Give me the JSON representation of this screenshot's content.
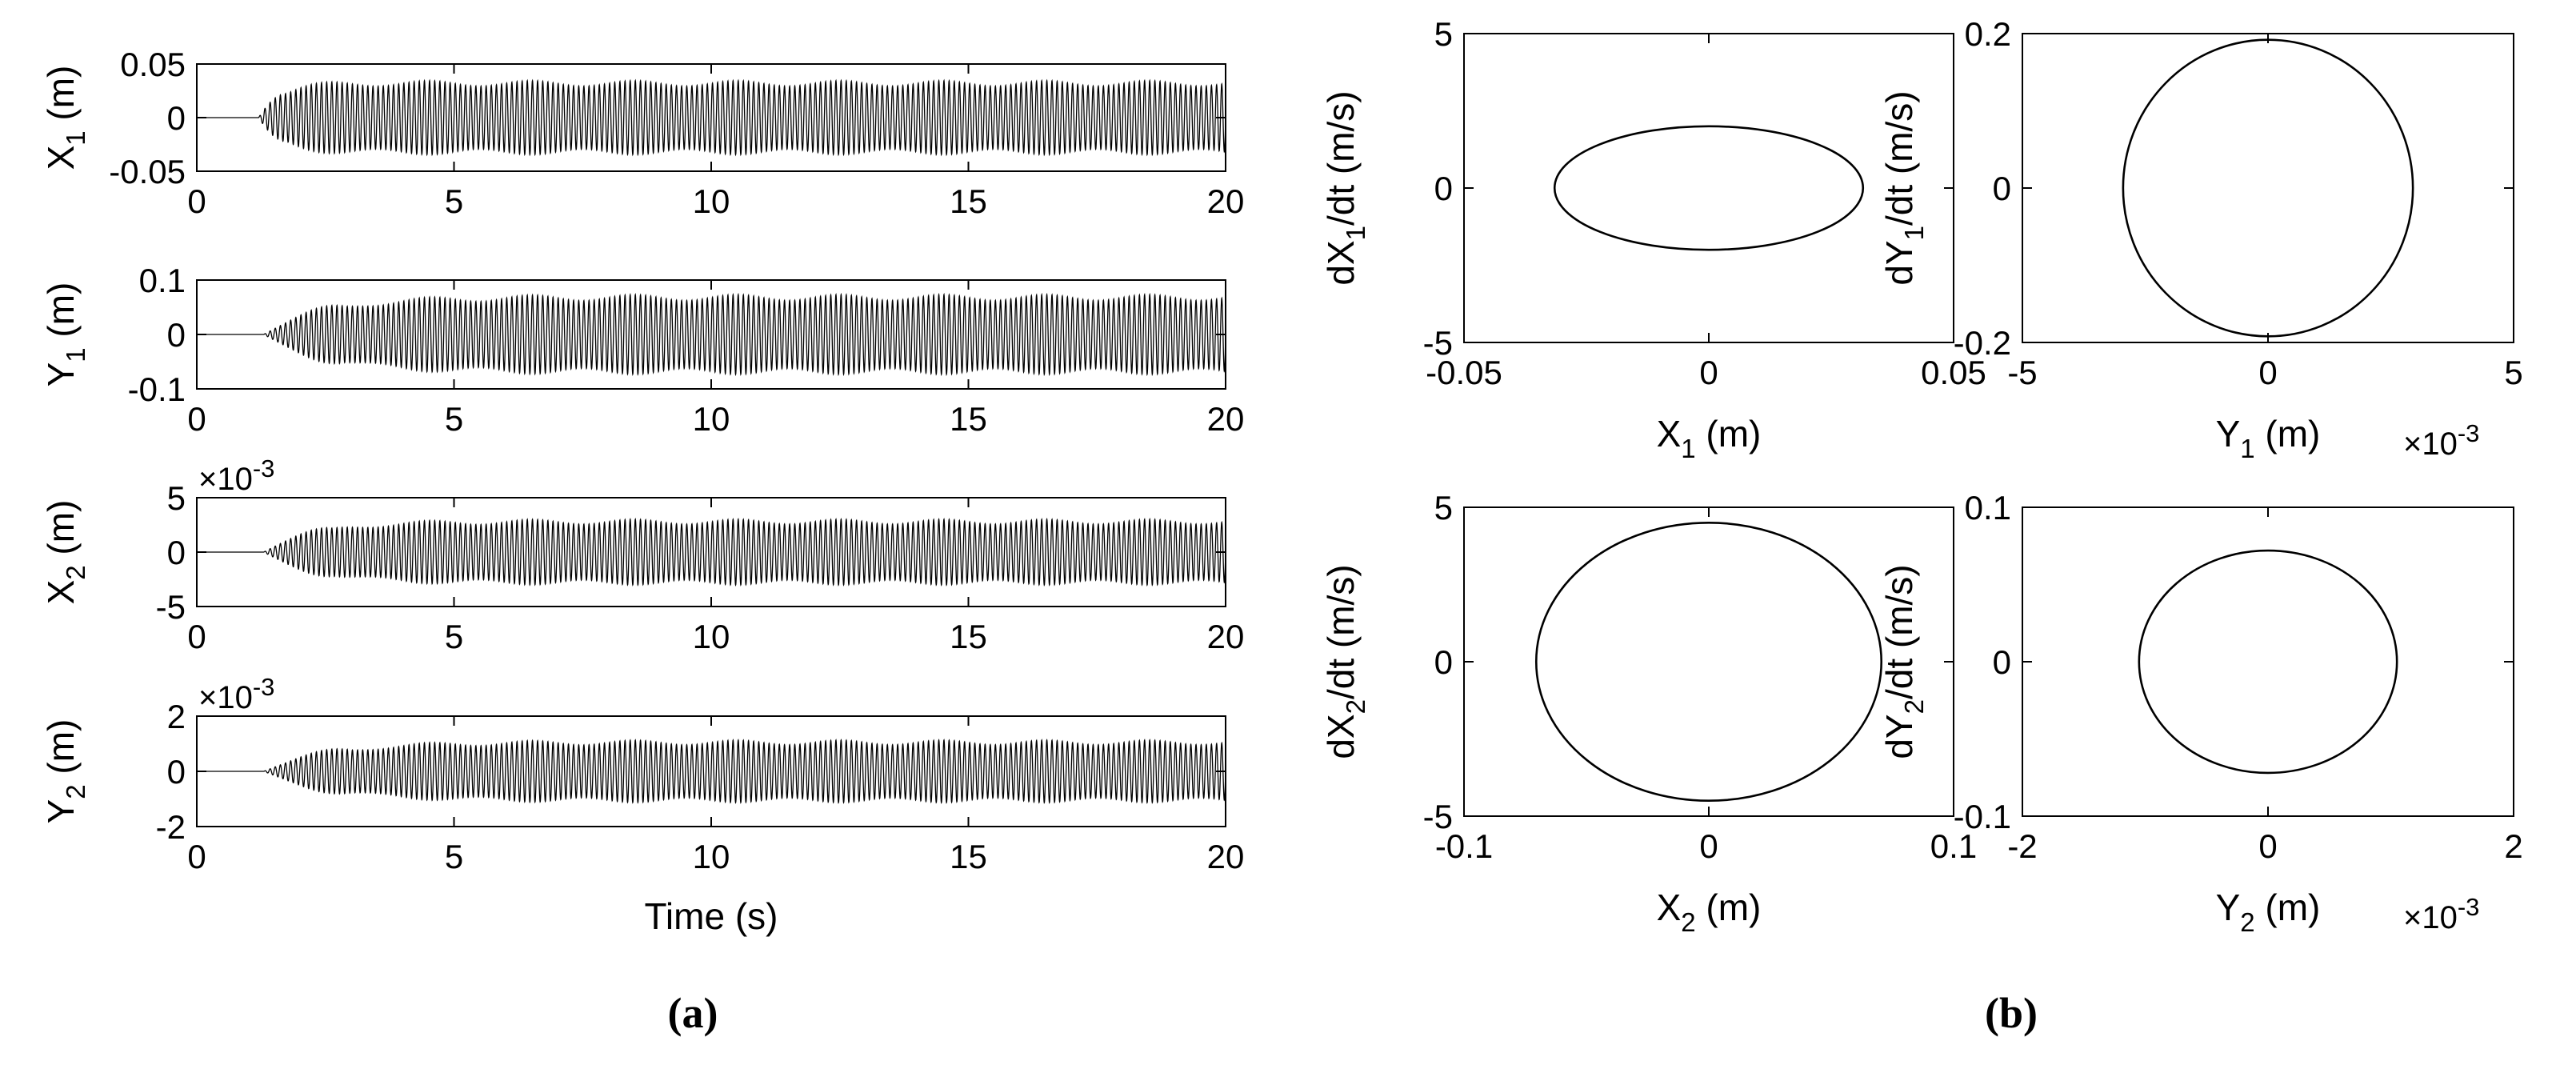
{
  "panel_labels": {
    "a": "(a)",
    "b": "(b)"
  },
  "colors": {
    "line": "#000000",
    "axes": "#000000",
    "background": "#ffffff"
  },
  "chart_data": [
    {
      "id": "ts_x1",
      "type": "line",
      "panel": "a",
      "xlabel": "",
      "ylabel": {
        "base": "X",
        "sub": "1",
        "rest": " (m)"
      },
      "xlim": [
        0,
        20
      ],
      "ylim": [
        -0.05,
        0.05
      ],
      "xticks": [
        0,
        5,
        10,
        15,
        20
      ],
      "xtick_labels": [
        "0",
        "5",
        "10",
        "15",
        "20"
      ],
      "yticks": [
        -0.05,
        0,
        0.05
      ],
      "ytick_labels": [
        "-0.05",
        "0",
        "0.05"
      ],
      "exponent": "",
      "grid": false,
      "signal": {
        "t_start": 0,
        "t_end": 20,
        "onset": 1.2,
        "rise": 0.9,
        "amplitude": 0.032,
        "freq_hz": 10,
        "beat_hz": 0.5,
        "beat_depth": 0.08
      }
    },
    {
      "id": "ts_y1",
      "type": "line",
      "panel": "a",
      "xlabel": "",
      "ylabel": {
        "base": "Y",
        "sub": "1",
        "rest": " (m)"
      },
      "xlim": [
        0,
        20
      ],
      "ylim": [
        -0.1,
        0.1
      ],
      "xticks": [
        0,
        5,
        10,
        15,
        20
      ],
      "xtick_labels": [
        "0",
        "5",
        "10",
        "15",
        "20"
      ],
      "yticks": [
        -0.1,
        0,
        0.1
      ],
      "ytick_labels": [
        "-0.1",
        "0",
        "0.1"
      ],
      "exponent": "",
      "grid": false,
      "signal": {
        "t_start": 0,
        "t_end": 20,
        "onset": 1.3,
        "rise": 2.6,
        "amplitude": 0.068,
        "freq_hz": 10,
        "beat_hz": 0.5,
        "beat_depth": 0.08
      }
    },
    {
      "id": "ts_x2",
      "type": "line",
      "panel": "a",
      "xlabel": "",
      "ylabel": {
        "base": "X",
        "sub": "2",
        "rest": " (m)"
      },
      "xlim": [
        0,
        20
      ],
      "ylim": [
        -5,
        5
      ],
      "xticks": [
        0,
        5,
        10,
        15,
        20
      ],
      "xtick_labels": [
        "0",
        "5",
        "10",
        "15",
        "20"
      ],
      "yticks": [
        -5,
        0,
        5
      ],
      "ytick_labels": [
        "-5",
        "0",
        "5"
      ],
      "exponent": "-3",
      "grid": false,
      "signal": {
        "t_start": 0,
        "t_end": 20,
        "onset": 1.3,
        "rise": 2.2,
        "amplitude": 2.8,
        "freq_hz": 10,
        "beat_hz": 0.5,
        "beat_depth": 0.08
      }
    },
    {
      "id": "ts_y2",
      "type": "line",
      "panel": "a",
      "xlabel": "Time (s)",
      "ylabel": {
        "base": "Y",
        "sub": "2",
        "rest": " (m)"
      },
      "xlim": [
        0,
        20
      ],
      "ylim": [
        -2,
        2
      ],
      "xticks": [
        0,
        5,
        10,
        15,
        20
      ],
      "xtick_labels": [
        "0",
        "5",
        "10",
        "15",
        "20"
      ],
      "yticks": [
        -2,
        0,
        2
      ],
      "ytick_labels": [
        "-2",
        "0",
        "2"
      ],
      "exponent": "-3",
      "grid": false,
      "signal": {
        "t_start": 0,
        "t_end": 20,
        "onset": 1.3,
        "rise": 2.8,
        "amplitude": 1.05,
        "freq_hz": 10,
        "beat_hz": 0.5,
        "beat_depth": 0.08
      }
    },
    {
      "id": "phase_x1",
      "type": "line",
      "panel": "b",
      "xlabel": {
        "base": "X",
        "sub": "1",
        "rest": " (m)"
      },
      "ylabel": {
        "base": "dX",
        "sub": "1",
        "rest": "/dt (m/s)"
      },
      "xlim": [
        -0.05,
        0.05
      ],
      "ylim": [
        -5,
        5
      ],
      "xticks": [
        -0.05,
        0,
        0.05
      ],
      "xtick_labels": [
        "-0.05",
        "0",
        "0.05"
      ],
      "yticks": [
        -5,
        0,
        5
      ],
      "ytick_labels": [
        "-5",
        "0",
        "5"
      ],
      "exponent": "",
      "grid": false,
      "ellipse": {
        "cx": 0,
        "cy": 0,
        "rx": 0.0315,
        "ry": 2.0
      }
    },
    {
      "id": "phase_y1",
      "type": "line",
      "panel": "b",
      "xlabel": {
        "base": "Y",
        "sub": "1",
        "rest": " (m)"
      },
      "ylabel": {
        "base": "dY",
        "sub": "1",
        "rest": "/dt (m/s)"
      },
      "xlim": [
        -5,
        5
      ],
      "ylim": [
        -0.2,
        0.2
      ],
      "xticks": [
        -5,
        0,
        5
      ],
      "xtick_labels": [
        "-5",
        "0",
        "5"
      ],
      "yticks": [
        -0.2,
        0,
        0.2
      ],
      "ytick_labels": [
        "-0.2",
        "0",
        "0.2"
      ],
      "exponent": "-3",
      "grid": false,
      "ellipse": {
        "cx": 0,
        "cy": 0,
        "rx": 2.95,
        "ry": 0.192
      }
    },
    {
      "id": "phase_x2",
      "type": "line",
      "panel": "b",
      "xlabel": {
        "base": "X",
        "sub": "2",
        "rest": " (m)"
      },
      "ylabel": {
        "base": "dX",
        "sub": "2",
        "rest": "/dt (m/s)"
      },
      "xlim": [
        -0.1,
        0.1
      ],
      "ylim": [
        -5,
        5
      ],
      "xticks": [
        -0.1,
        0,
        0.1
      ],
      "xtick_labels": [
        "-0.1",
        "0",
        "0.1"
      ],
      "yticks": [
        -5,
        0,
        5
      ],
      "ytick_labels": [
        "-5",
        "0",
        "5"
      ],
      "exponent": "",
      "grid": false,
      "ellipse": {
        "cx": 0,
        "cy": 0,
        "rx": 0.0705,
        "ry": 4.5
      }
    },
    {
      "id": "phase_y2",
      "type": "line",
      "panel": "b",
      "xlabel": {
        "base": "Y",
        "sub": "2",
        "rest": " (m)"
      },
      "ylabel": {
        "base": "dY",
        "sub": "2",
        "rest": "/dt (m/s)"
      },
      "xlim": [
        -2,
        2
      ],
      "ylim": [
        -0.1,
        0.1
      ],
      "xticks": [
        -2,
        0,
        2
      ],
      "xtick_labels": [
        "-2",
        "0",
        "2"
      ],
      "yticks": [
        -0.1,
        0,
        0.1
      ],
      "ytick_labels": [
        "-0.1",
        "0",
        "0.1"
      ],
      "exponent": "-3",
      "grid": false,
      "ellipse": {
        "cx": 0,
        "cy": 0,
        "rx": 1.05,
        "ry": 0.072
      }
    }
  ]
}
